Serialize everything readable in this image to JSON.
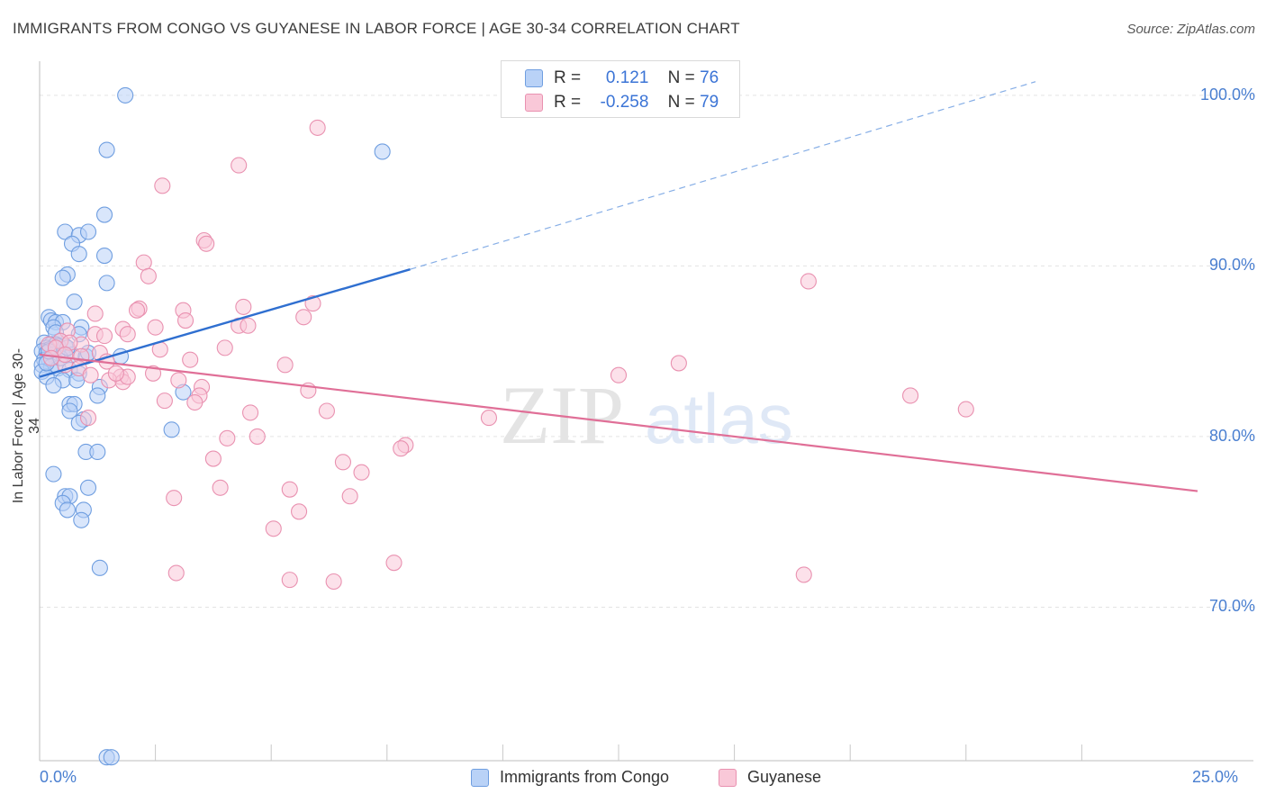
{
  "chart_data": {
    "type": "scatter",
    "title": "IMMIGRANTS FROM CONGO VS GUYANESE IN LABOR FORCE | AGE 30-34 CORRELATION CHART",
    "source": "Source: ZipAtlas.com",
    "xlabel": "",
    "ylabel": "In Labor Force | Age 30-34",
    "xlim": [
      0,
      25
    ],
    "ylim": [
      61,
      102
    ],
    "x_ticks": [
      "0.0%",
      "25.0%"
    ],
    "y_ticks": [
      {
        "value": 100,
        "label": "100.0%"
      },
      {
        "value": 90,
        "label": "90.0%"
      },
      {
        "value": 80,
        "label": "80.0%"
      },
      {
        "value": 70,
        "label": "70.0%"
      }
    ],
    "watermark": {
      "zip": "ZIP",
      "atlas": "atlas"
    },
    "legend_stats": [
      {
        "r_label": "R =",
        "r_value": "0.121",
        "n_label": "N =",
        "n_value": "76"
      },
      {
        "r_label": "R =",
        "r_value": "-0.258",
        "n_label": "N =",
        "n_value": "79"
      }
    ],
    "series": [
      {
        "name": "Immigrants from Congo",
        "color": "#6f9ee0",
        "fill": "#b9d2f7",
        "trend": {
          "x0": 0,
          "y0": 83.5,
          "x1": 8,
          "y1": 89.8,
          "dash_x1": 21.5,
          "dash_y1": 100.8
        },
        "points": [
          [
            1.85,
            100.0
          ],
          [
            1.45,
            96.8
          ],
          [
            7.4,
            96.7
          ],
          [
            1.4,
            93.0
          ],
          [
            0.55,
            92.0
          ],
          [
            0.85,
            91.8
          ],
          [
            1.05,
            92.0
          ],
          [
            0.7,
            91.3
          ],
          [
            0.85,
            90.7
          ],
          [
            1.4,
            90.6
          ],
          [
            0.6,
            89.5
          ],
          [
            0.5,
            89.3
          ],
          [
            1.45,
            89.0
          ],
          [
            0.75,
            87.9
          ],
          [
            0.2,
            87.0
          ],
          [
            0.25,
            86.8
          ],
          [
            0.35,
            86.7
          ],
          [
            0.5,
            86.7
          ],
          [
            0.3,
            86.4
          ],
          [
            0.9,
            86.4
          ],
          [
            0.35,
            86.1
          ],
          [
            0.85,
            86.0
          ],
          [
            0.45,
            85.6
          ],
          [
            0.1,
            85.5
          ],
          [
            0.25,
            85.4
          ],
          [
            0.35,
            85.4
          ],
          [
            0.55,
            85.3
          ],
          [
            0.15,
            85.2
          ],
          [
            0.4,
            85.3
          ],
          [
            0.2,
            85.1
          ],
          [
            0.05,
            85.0
          ],
          [
            0.15,
            84.9
          ],
          [
            0.3,
            84.8
          ],
          [
            0.5,
            84.8
          ],
          [
            0.7,
            84.8
          ],
          [
            1.0,
            84.7
          ],
          [
            1.75,
            84.7
          ],
          [
            0.1,
            84.5
          ],
          [
            0.2,
            84.5
          ],
          [
            0.05,
            84.2
          ],
          [
            0.25,
            84.1
          ],
          [
            0.4,
            84.0
          ],
          [
            0.65,
            83.9
          ],
          [
            0.05,
            83.8
          ],
          [
            0.85,
            83.7
          ],
          [
            0.15,
            83.5
          ],
          [
            0.5,
            83.3
          ],
          [
            0.8,
            83.3
          ],
          [
            0.3,
            83.0
          ],
          [
            1.3,
            82.9
          ],
          [
            3.1,
            82.6
          ],
          [
            1.25,
            82.4
          ],
          [
            0.65,
            81.9
          ],
          [
            0.75,
            81.9
          ],
          [
            0.65,
            81.5
          ],
          [
            0.95,
            81.0
          ],
          [
            0.85,
            80.8
          ],
          [
            2.85,
            80.4
          ],
          [
            1.0,
            79.1
          ],
          [
            1.25,
            79.1
          ],
          [
            0.3,
            77.8
          ],
          [
            1.05,
            77.0
          ],
          [
            0.55,
            76.5
          ],
          [
            0.65,
            76.5
          ],
          [
            0.5,
            76.1
          ],
          [
            0.6,
            75.7
          ],
          [
            0.95,
            75.7
          ],
          [
            0.9,
            75.1
          ],
          [
            1.3,
            72.3
          ],
          [
            1.45,
            61.2
          ],
          [
            1.55,
            61.2
          ],
          [
            0.15,
            84.3
          ],
          [
            0.45,
            84.6
          ],
          [
            0.2,
            85.0
          ],
          [
            0.6,
            85.2
          ],
          [
            1.05,
            84.9
          ]
        ]
      },
      {
        "name": "Guyanese",
        "color": "#e991b0",
        "fill": "#f9c8d8",
        "trend": {
          "x0": 0,
          "y0": 84.8,
          "x1": 25,
          "y1": 76.8
        },
        "points": [
          [
            6.0,
            98.1
          ],
          [
            4.3,
            95.9
          ],
          [
            2.65,
            94.7
          ],
          [
            3.55,
            91.5
          ],
          [
            3.6,
            91.3
          ],
          [
            2.25,
            90.2
          ],
          [
            2.35,
            89.4
          ],
          [
            16.6,
            89.1
          ],
          [
            2.15,
            87.5
          ],
          [
            2.1,
            87.4
          ],
          [
            3.1,
            87.4
          ],
          [
            4.4,
            87.6
          ],
          [
            5.9,
            87.8
          ],
          [
            1.2,
            87.2
          ],
          [
            3.15,
            86.8
          ],
          [
            5.7,
            87.0
          ],
          [
            2.5,
            86.4
          ],
          [
            4.3,
            86.5
          ],
          [
            4.5,
            86.5
          ],
          [
            1.8,
            86.3
          ],
          [
            0.6,
            86.2
          ],
          [
            1.2,
            86.0
          ],
          [
            1.9,
            86.0
          ],
          [
            1.4,
            85.9
          ],
          [
            0.45,
            85.6
          ],
          [
            0.9,
            85.4
          ],
          [
            0.65,
            85.5
          ],
          [
            2.6,
            85.1
          ],
          [
            4.0,
            85.2
          ],
          [
            1.3,
            84.9
          ],
          [
            0.9,
            84.7
          ],
          [
            1.45,
            84.4
          ],
          [
            3.25,
            84.5
          ],
          [
            13.8,
            84.3
          ],
          [
            0.55,
            84.2
          ],
          [
            5.3,
            84.2
          ],
          [
            0.85,
            84.0
          ],
          [
            2.45,
            83.7
          ],
          [
            12.5,
            83.6
          ],
          [
            1.1,
            83.6
          ],
          [
            1.75,
            83.5
          ],
          [
            3.0,
            83.3
          ],
          [
            1.5,
            83.3
          ],
          [
            1.8,
            83.2
          ],
          [
            1.9,
            83.5
          ],
          [
            3.5,
            82.9
          ],
          [
            5.8,
            82.7
          ],
          [
            3.45,
            82.4
          ],
          [
            18.8,
            82.4
          ],
          [
            2.7,
            82.1
          ],
          [
            3.35,
            82.0
          ],
          [
            20.0,
            81.6
          ],
          [
            6.2,
            81.5
          ],
          [
            4.55,
            81.4
          ],
          [
            1.05,
            81.1
          ],
          [
            9.7,
            81.1
          ],
          [
            4.7,
            80.0
          ],
          [
            4.05,
            79.9
          ],
          [
            7.9,
            79.5
          ],
          [
            7.8,
            79.3
          ],
          [
            3.75,
            78.7
          ],
          [
            6.55,
            78.5
          ],
          [
            6.95,
            77.9
          ],
          [
            3.9,
            77.0
          ],
          [
            5.4,
            76.9
          ],
          [
            2.9,
            76.4
          ],
          [
            6.7,
            76.5
          ],
          [
            5.6,
            75.6
          ],
          [
            5.05,
            74.6
          ],
          [
            7.65,
            72.6
          ],
          [
            2.95,
            72.0
          ],
          [
            16.5,
            71.9
          ],
          [
            5.4,
            71.6
          ],
          [
            6.35,
            71.5
          ],
          [
            0.2,
            85.4
          ],
          [
            0.35,
            85.2
          ],
          [
            0.55,
            84.8
          ],
          [
            1.65,
            83.7
          ],
          [
            0.25,
            84.6
          ]
        ]
      }
    ]
  },
  "legend_bottom": [
    "Immigrants from Congo",
    "Guyanese"
  ]
}
